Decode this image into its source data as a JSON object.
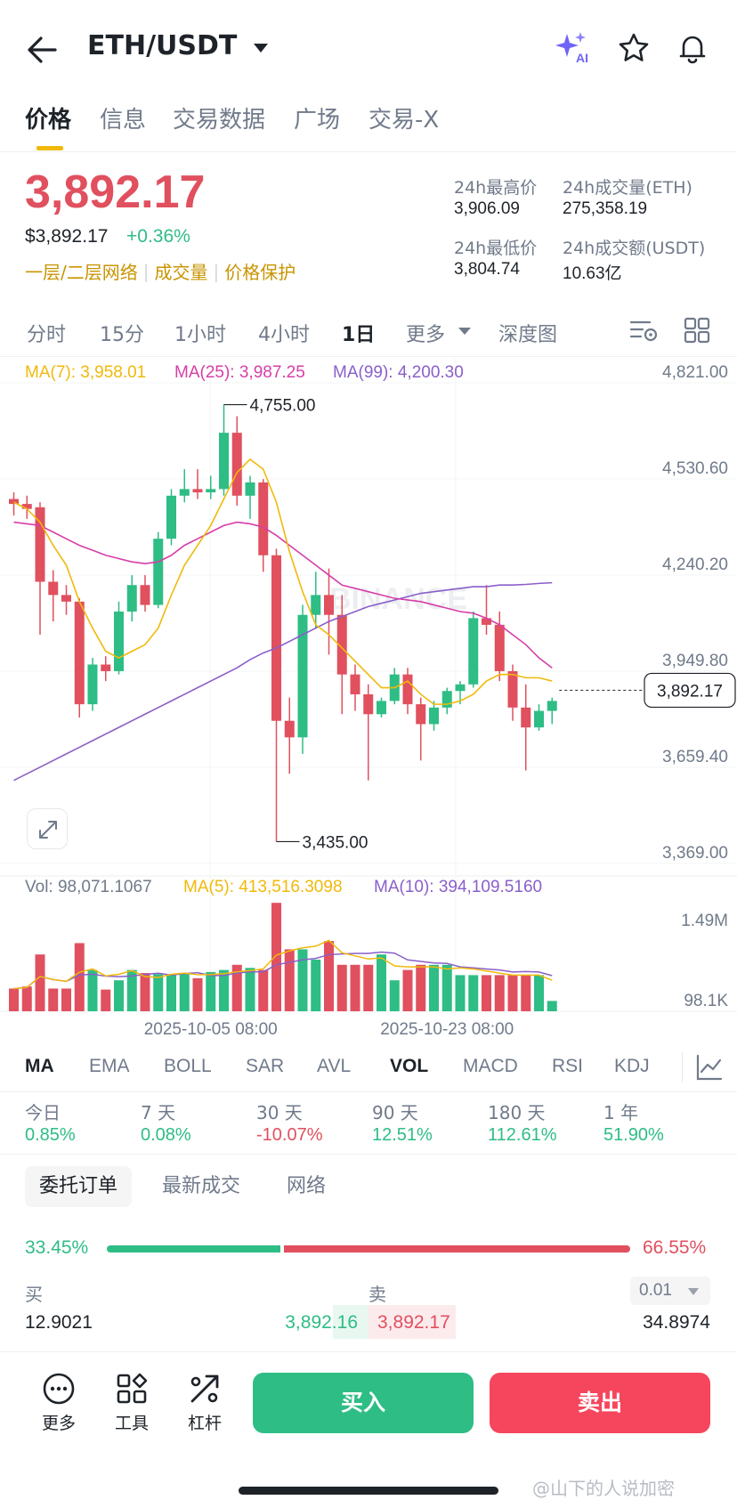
{
  "header": {
    "pair": "ETH/USDT",
    "icons": [
      "back-arrow-icon",
      "caret-down-icon",
      "ai-sparkle-icon",
      "star-icon",
      "bell-icon"
    ],
    "ai_badge": "AI"
  },
  "tabs": [
    {
      "label": "价格",
      "active": true
    },
    {
      "label": "信息"
    },
    {
      "label": "交易数据"
    },
    {
      "label": "广场"
    },
    {
      "label": "交易-X"
    }
  ],
  "price": {
    "last": "3,892.17",
    "usd": "$3,892.17",
    "change": "+0.36%",
    "tags": [
      "一层/二层网络",
      "成交量",
      "价格保护"
    ]
  },
  "stats": {
    "high_label": "24h最高价",
    "high_value": "3,906.09",
    "vol_eth_label": "24h成交量(ETH)",
    "vol_eth_value": "275,358.19",
    "low_label": "24h最低价",
    "low_value": "3,804.74",
    "vol_usdt_label": "24h成交额(USDT)",
    "vol_usdt_value": "10.63亿"
  },
  "intervals": [
    {
      "label": "分时"
    },
    {
      "label": "15分"
    },
    {
      "label": "1小时"
    },
    {
      "label": "4小时"
    },
    {
      "label": "1日",
      "active": true
    },
    {
      "label": "更多"
    },
    {
      "label": "深度图"
    }
  ],
  "colors": {
    "up": "#2ebd85",
    "down": "#e0505e",
    "ma7": "#f0b90b",
    "ma25": "#d63ea8",
    "ma99": "#8a5fc9",
    "accent": "#f0b90b"
  },
  "ma_legend": {
    "ma7": "MA(7): 3,958.01",
    "ma25": "MA(25): 3,987.25",
    "ma99": "MA(99): 4,200.30"
  },
  "vol_legend": {
    "vol": "Vol: 98,071.1067",
    "ma5": "MA(5): 413,516.3098",
    "ma10": "MA(10): 394,109.5160"
  },
  "chart_data": {
    "type": "candlestick",
    "price_ticks": [
      "4,821.00",
      "4,530.60",
      "4,240.20",
      "3,949.80",
      "3,659.40",
      "3,369.00"
    ],
    "price_tick_values": [
      4821.0,
      4530.6,
      4240.2,
      3949.8,
      3659.4,
      3369.0
    ],
    "ylim": [
      3369.0,
      4821.0
    ],
    "last_price_label": "3,892.17",
    "last_price": 3892.17,
    "high_marker": "4,755.00",
    "high_value": 4755.0,
    "low_marker": "3,435.00",
    "low_value": 3435.0,
    "x_ticks": [
      "2025-10-05 08:00",
      "2025-10-23 08:00"
    ],
    "x_tick_index": [
      15,
      33
    ],
    "volume_ticks": [
      "1.49M",
      "98.1K"
    ],
    "volume_tick_values": [
      1490000,
      98100
    ],
    "candles": [
      {
        "o": 4470,
        "h": 4490,
        "l": 4420,
        "c": 4455
      },
      {
        "o": 4455,
        "h": 4480,
        "l": 4410,
        "c": 4440
      },
      {
        "o": 4445,
        "h": 4460,
        "l": 4060,
        "c": 4220
      },
      {
        "o": 4220,
        "h": 4255,
        "l": 4100,
        "c": 4180
      },
      {
        "o": 4180,
        "h": 4210,
        "l": 4120,
        "c": 4160
      },
      {
        "o": 4160,
        "h": 4170,
        "l": 3810,
        "c": 3850
      },
      {
        "o": 3850,
        "h": 3990,
        "l": 3830,
        "c": 3970
      },
      {
        "o": 3970,
        "h": 3995,
        "l": 3920,
        "c": 3950
      },
      {
        "o": 3950,
        "h": 4160,
        "l": 3940,
        "c": 4130
      },
      {
        "o": 4130,
        "h": 4240,
        "l": 4100,
        "c": 4210
      },
      {
        "o": 4210,
        "h": 4240,
        "l": 4130,
        "c": 4150
      },
      {
        "o": 4150,
        "h": 4370,
        "l": 4140,
        "c": 4350
      },
      {
        "o": 4350,
        "h": 4500,
        "l": 4330,
        "c": 4480
      },
      {
        "o": 4480,
        "h": 4560,
        "l": 4460,
        "c": 4500
      },
      {
        "o": 4500,
        "h": 4560,
        "l": 4470,
        "c": 4490
      },
      {
        "o": 4490,
        "h": 4540,
        "l": 4470,
        "c": 4500
      },
      {
        "o": 4500,
        "h": 4755,
        "l": 4480,
        "c": 4670
      },
      {
        "o": 4670,
        "h": 4720,
        "l": 4450,
        "c": 4480
      },
      {
        "o": 4480,
        "h": 4540,
        "l": 4410,
        "c": 4520
      },
      {
        "o": 4520,
        "h": 4530,
        "l": 4250,
        "c": 4300
      },
      {
        "o": 4300,
        "h": 4320,
        "l": 3435,
        "c": 3800
      },
      {
        "o": 3800,
        "h": 3870,
        "l": 3640,
        "c": 3750
      },
      {
        "o": 3750,
        "h": 4150,
        "l": 3700,
        "c": 4120
      },
      {
        "o": 4120,
        "h": 4250,
        "l": 4080,
        "c": 4180
      },
      {
        "o": 4180,
        "h": 4260,
        "l": 4000,
        "c": 4120
      },
      {
        "o": 4120,
        "h": 4180,
        "l": 3820,
        "c": 3940
      },
      {
        "o": 3940,
        "h": 3970,
        "l": 3830,
        "c": 3880
      },
      {
        "o": 3880,
        "h": 3910,
        "l": 3620,
        "c": 3820
      },
      {
        "o": 3820,
        "h": 3870,
        "l": 3810,
        "c": 3860
      },
      {
        "o": 3860,
        "h": 3960,
        "l": 3850,
        "c": 3940
      },
      {
        "o": 3940,
        "h": 3960,
        "l": 3820,
        "c": 3850
      },
      {
        "o": 3850,
        "h": 3870,
        "l": 3680,
        "c": 3790
      },
      {
        "o": 3790,
        "h": 3860,
        "l": 3770,
        "c": 3840
      },
      {
        "o": 3840,
        "h": 3900,
        "l": 3820,
        "c": 3890
      },
      {
        "o": 3890,
        "h": 3920,
        "l": 3850,
        "c": 3910
      },
      {
        "o": 3910,
        "h": 4130,
        "l": 3900,
        "c": 4110
      },
      {
        "o": 4110,
        "h": 4210,
        "l": 4060,
        "c": 4090
      },
      {
        "o": 4090,
        "h": 4130,
        "l": 3920,
        "c": 3950
      },
      {
        "o": 3950,
        "h": 3970,
        "l": 3800,
        "c": 3840
      },
      {
        "o": 3840,
        "h": 3910,
        "l": 3650,
        "c": 3780
      },
      {
        "o": 3780,
        "h": 3850,
        "l": 3770,
        "c": 3830
      },
      {
        "o": 3830,
        "h": 3870,
        "l": 3790,
        "c": 3860
      }
    ],
    "ma7_line": [
      4460,
      4440,
      4400,
      4330,
      4270,
      4160,
      4080,
      4010,
      3990,
      4010,
      4030,
      4080,
      4180,
      4270,
      4330,
      4390,
      4470,
      4550,
      4590,
      4560,
      4460,
      4310,
      4190,
      4090,
      4060,
      4020,
      3980,
      3940,
      3900,
      3900,
      3920,
      3880,
      3850,
      3850,
      3860,
      3880,
      3920,
      3940,
      3940,
      3930,
      3930,
      3920
    ],
    "ma25_line": [
      4400,
      4395,
      4390,
      4370,
      4350,
      4330,
      4315,
      4300,
      4290,
      4280,
      4275,
      4280,
      4300,
      4330,
      4350,
      4370,
      4390,
      4400,
      4395,
      4385,
      4360,
      4330,
      4300,
      4270,
      4240,
      4210,
      4200,
      4190,
      4180,
      4170,
      4165,
      4160,
      4150,
      4140,
      4130,
      4125,
      4110,
      4090,
      4060,
      4030,
      3990,
      3960
    ],
    "ma99_line": [
      3620,
      3640,
      3660,
      3680,
      3700,
      3720,
      3740,
      3760,
      3780,
      3800,
      3820,
      3840,
      3860,
      3880,
      3900,
      3920,
      3940,
      3960,
      3985,
      4005,
      4020,
      4040,
      4060,
      4080,
      4100,
      4115,
      4130,
      4145,
      4155,
      4165,
      4175,
      4185,
      4190,
      4195,
      4200,
      4205,
      4205,
      4210,
      4210,
      4212,
      4215,
      4217
    ],
    "volumes": [
      0.22,
      0.24,
      0.55,
      0.22,
      0.22,
      0.66,
      0.4,
      0.21,
      0.3,
      0.4,
      0.37,
      0.36,
      0.36,
      0.36,
      0.32,
      0.38,
      0.4,
      0.45,
      0.42,
      0.4,
      1.05,
      0.6,
      0.6,
      0.5,
      0.68,
      0.45,
      0.45,
      0.45,
      0.55,
      0.3,
      0.4,
      0.45,
      0.45,
      0.45,
      0.35,
      0.35,
      0.35,
      0.35,
      0.35,
      0.35,
      0.35,
      0.1
    ]
  },
  "indicators": [
    {
      "label": "MA",
      "active": true
    },
    {
      "label": "EMA"
    },
    {
      "label": "BOLL"
    },
    {
      "label": "SAR"
    },
    {
      "label": "AVL"
    },
    {
      "label": "VOL",
      "active": true
    },
    {
      "label": "MACD"
    },
    {
      "label": "RSI"
    },
    {
      "label": "KDJ"
    }
  ],
  "performance": [
    {
      "label": "今日",
      "value": "0.85%",
      "trend": "up"
    },
    {
      "label": "7 天",
      "value": "0.08%",
      "trend": "up"
    },
    {
      "label": "30 天",
      "value": "-10.07%",
      "trend": "down"
    },
    {
      "label": "90 天",
      "value": "12.51%",
      "trend": "up"
    },
    {
      "label": "180 天",
      "value": "112.61%",
      "trend": "up"
    },
    {
      "label": "1 年",
      "value": "51.90%",
      "trend": "up"
    }
  ],
  "order_tabs": [
    {
      "label": "委托订单",
      "active": true
    },
    {
      "label": "最新成交"
    },
    {
      "label": "网络"
    }
  ],
  "order_book": {
    "buy_ratio": "33.45%",
    "sell_ratio": "66.55%",
    "buy_fraction": 0.3345,
    "buy_label": "买",
    "sell_label": "卖",
    "precision": "0.01",
    "rows": [
      {
        "bid_qty": "12.9021",
        "bid_price": "3,892.16",
        "ask_price": "3,892.17",
        "ask_qty": "34.8974"
      }
    ]
  },
  "bottom_bar": {
    "more_label": "更多",
    "tools_label": "工具",
    "leverage_label": "杠杆",
    "buy_label": "买入",
    "sell_label": "卖出"
  },
  "watermark": "@山下的人说加密"
}
